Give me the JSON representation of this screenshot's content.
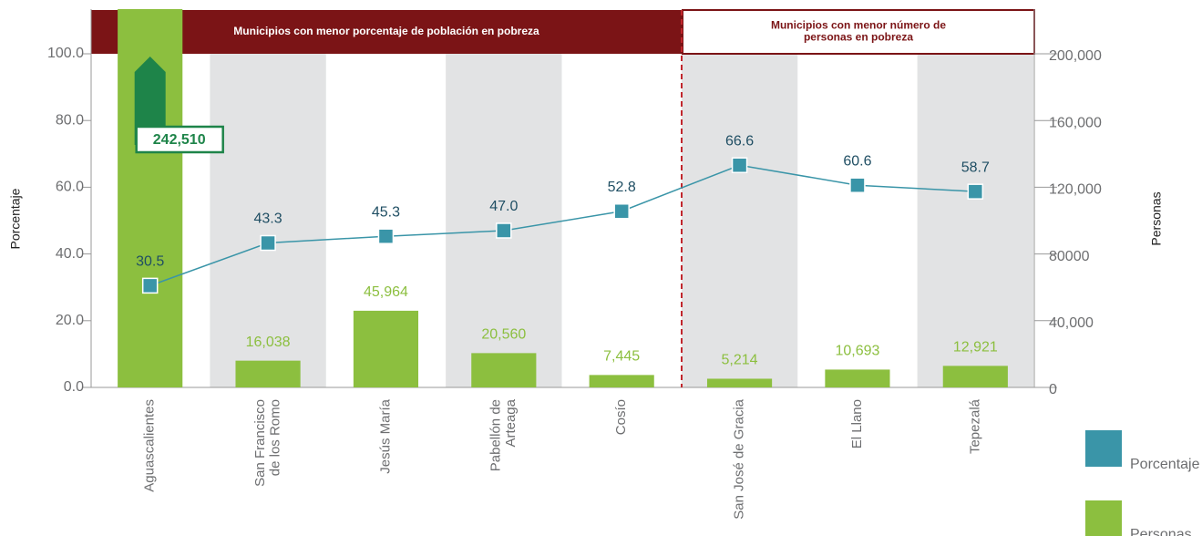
{
  "chart_data": {
    "type": "bar",
    "categories": [
      "Aguascalientes",
      "San Francisco\nde los Romo",
      "Jesús María",
      "Pabellón de\nArteaga",
      "Cosío",
      "San José de Gracia",
      "El Llano",
      "Tepezalá"
    ],
    "series": [
      {
        "name": "Personas",
        "type": "bar",
        "axis": "y2",
        "color": "#8cbf3f",
        "values": [
          242510,
          16038,
          45964,
          20560,
          7445,
          5214,
          10693,
          12921
        ],
        "value_labels": [
          "242,510",
          "16,038",
          "45,964",
          "20,560",
          "7,445",
          "5,214",
          "10,693",
          "12,921"
        ]
      },
      {
        "name": "Porcentaje",
        "type": "line",
        "color": "#3a95a8",
        "values": [
          30.5,
          43.3,
          45.3,
          47.0,
          52.8,
          66.6,
          60.6,
          58.7
        ],
        "value_labels": [
          "30.5",
          "43.3",
          "45.3",
          "47.0",
          "52.8",
          "66.6",
          "60.6",
          "58.7"
        ]
      }
    ],
    "ylabel": "Porcentaje",
    "y2label": "Personas",
    "ylim": [
      0,
      100
    ],
    "yticks": [
      {
        "value": 0,
        "label": "0.0"
      },
      {
        "value": 20,
        "label": "20.0"
      },
      {
        "value": 40,
        "label": "40.0"
      },
      {
        "value": 60,
        "label": "60.0"
      },
      {
        "value": 80,
        "label": "80.0"
      },
      {
        "value": 100,
        "label": "100.0"
      }
    ],
    "y2lim": [
      0,
      200000
    ],
    "y2ticks": [
      0,
      {
        "value": 40000,
        "label": "40,000"
      },
      80000,
      {
        "value": 120000,
        "label": "120,000"
      },
      {
        "value": 160000,
        "label": "160,000"
      },
      {
        "value": 200000,
        "label": "200,000"
      }
    ],
    "annotations": [
      "Municipios con menor porcentaje de población en pobreza",
      "Municipios con menor número de\npersonas en pobreza"
    ],
    "legend": "bottom-right"
  }
}
